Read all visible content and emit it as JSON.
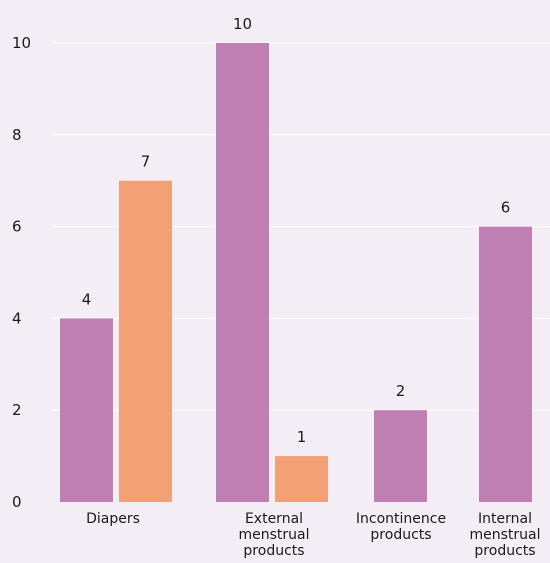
{
  "chart_data": {
    "type": "bar",
    "title": "",
    "xlabel": "",
    "ylabel": "",
    "ylim": [
      0,
      10
    ],
    "yticks": [
      0,
      2,
      4,
      6,
      8,
      10
    ],
    "grid": true,
    "legend": "none",
    "categories": [
      [
        "Diapers"
      ],
      [
        "External",
        "menstrual",
        "products"
      ],
      [
        "Incontinence",
        "products"
      ],
      [
        "Internal",
        "menstrual",
        "products"
      ]
    ],
    "series": [
      {
        "color": "#c07fb2",
        "values": [
          4,
          10,
          2,
          6
        ]
      },
      {
        "color": "#f4a077",
        "values": [
          7,
          1,
          null,
          null
        ]
      }
    ]
  },
  "colors": {
    "background": "#f3eef5",
    "grid": "#ffffff",
    "text": "#1a1a1a"
  }
}
